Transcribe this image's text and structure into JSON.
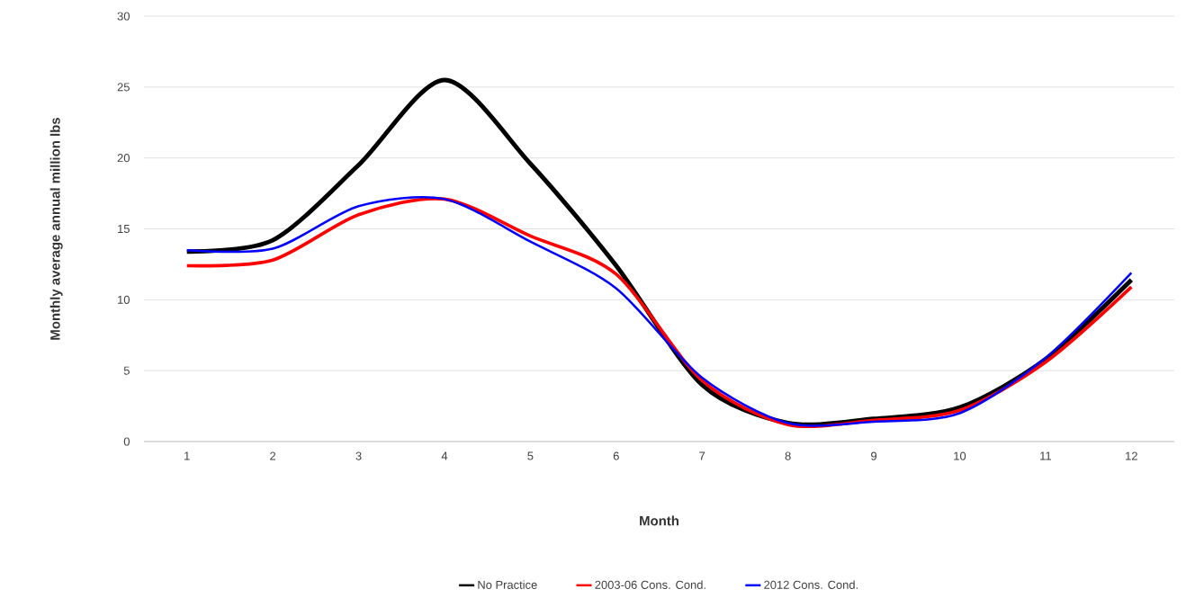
{
  "chart_data": {
    "type": "line",
    "xlabel": "Month",
    "ylabel": "Monthly average annual million lbs",
    "categories": [
      "1",
      "2",
      "3",
      "4",
      "5",
      "6",
      "7",
      "8",
      "9",
      "10",
      "11",
      "12"
    ],
    "series": [
      {
        "name": "No Practice",
        "color": "#000000",
        "values": [
          13.4,
          14.2,
          19.5,
          25.5,
          19.6,
          12.4,
          4.0,
          1.3,
          1.6,
          2.4,
          5.8,
          11.4
        ]
      },
      {
        "name": "2003-06 Cons. Cond.",
        "color": "#ff0000",
        "values": [
          12.4,
          12.8,
          16.0,
          17.1,
          14.5,
          11.8,
          4.3,
          1.2,
          1.5,
          2.2,
          5.6,
          10.9
        ]
      },
      {
        "name": "2012 Cons. Cond.",
        "color": "#0000ff",
        "values": [
          13.5,
          13.6,
          16.6,
          17.1,
          14.1,
          10.8,
          4.5,
          1.3,
          1.4,
          2.0,
          5.9,
          11.9
        ]
      }
    ],
    "ylim": [
      0,
      30
    ],
    "yticks": [
      0,
      5,
      10,
      15,
      20,
      25,
      30
    ],
    "grid": "y",
    "legend": "bottom"
  }
}
